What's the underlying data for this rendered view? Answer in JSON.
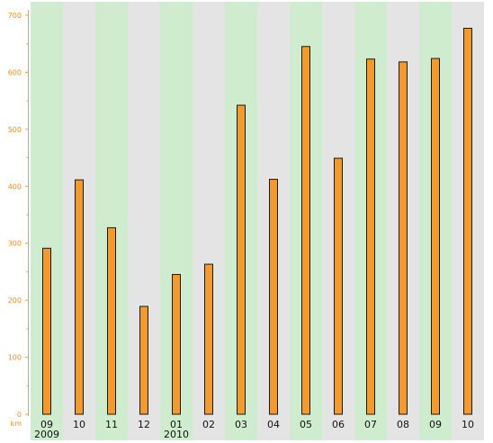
{
  "chart_data": {
    "type": "bar",
    "categories": [
      "09",
      "10",
      "11",
      "12",
      "01",
      "02",
      "03",
      "04",
      "05",
      "06",
      "07",
      "08",
      "09",
      "10"
    ],
    "years": [
      {
        "label": "2009",
        "start_index": 0
      },
      {
        "label": "2010",
        "start_index": 4
      }
    ],
    "values": [
      292,
      412,
      328,
      190,
      246,
      264,
      543,
      413,
      646,
      450,
      624,
      619,
      625,
      678
    ],
    "unit_label": "km",
    "ylim": [
      0,
      700
    ],
    "yticks": [
      0,
      100,
      200,
      300,
      400,
      500,
      600,
      700
    ],
    "colors": {
      "bar_fill": "#f09a30",
      "bar_stroke": "#1a1a1a",
      "band_green": "#cfeccf",
      "band_gray": "#e4e4e4",
      "axis": "#f0a040",
      "tick_text": "#e8902a"
    },
    "legend": "none",
    "grid": false
  }
}
